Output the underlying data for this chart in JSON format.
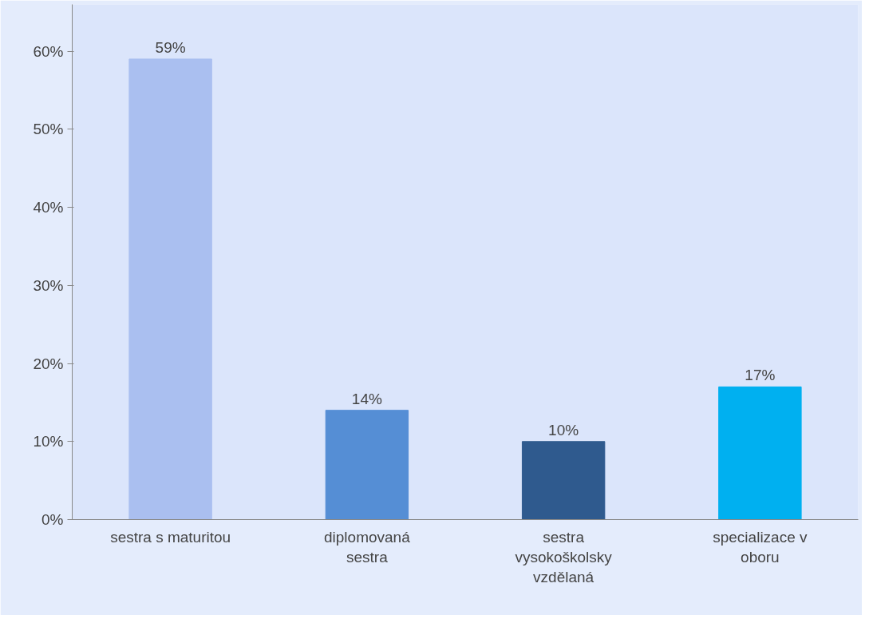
{
  "chart_data": {
    "type": "bar",
    "categories": [
      "sestra s maturitou",
      "diplomovaná\nsestra",
      "sestra\nvysokoškolsky\nvzdělaná",
      "specializace v\noboru"
    ],
    "values": [
      59,
      14,
      10,
      17
    ],
    "colors": [
      "#aabff0",
      "#558ed5",
      "#2f5a8e",
      "#00b0f0"
    ],
    "value_labels": [
      "59%",
      "14%",
      "10%",
      "17%"
    ],
    "ylim": [
      0,
      66
    ],
    "yticks": [
      {
        "value": 0,
        "label": "0%"
      },
      {
        "value": 10,
        "label": "10%"
      },
      {
        "value": 20,
        "label": "20%"
      },
      {
        "value": 30,
        "label": "30%"
      },
      {
        "value": 40,
        "label": "40%"
      },
      {
        "value": 50,
        "label": "50%"
      },
      {
        "value": 60,
        "label": "60%"
      }
    ],
    "grid": false
  }
}
